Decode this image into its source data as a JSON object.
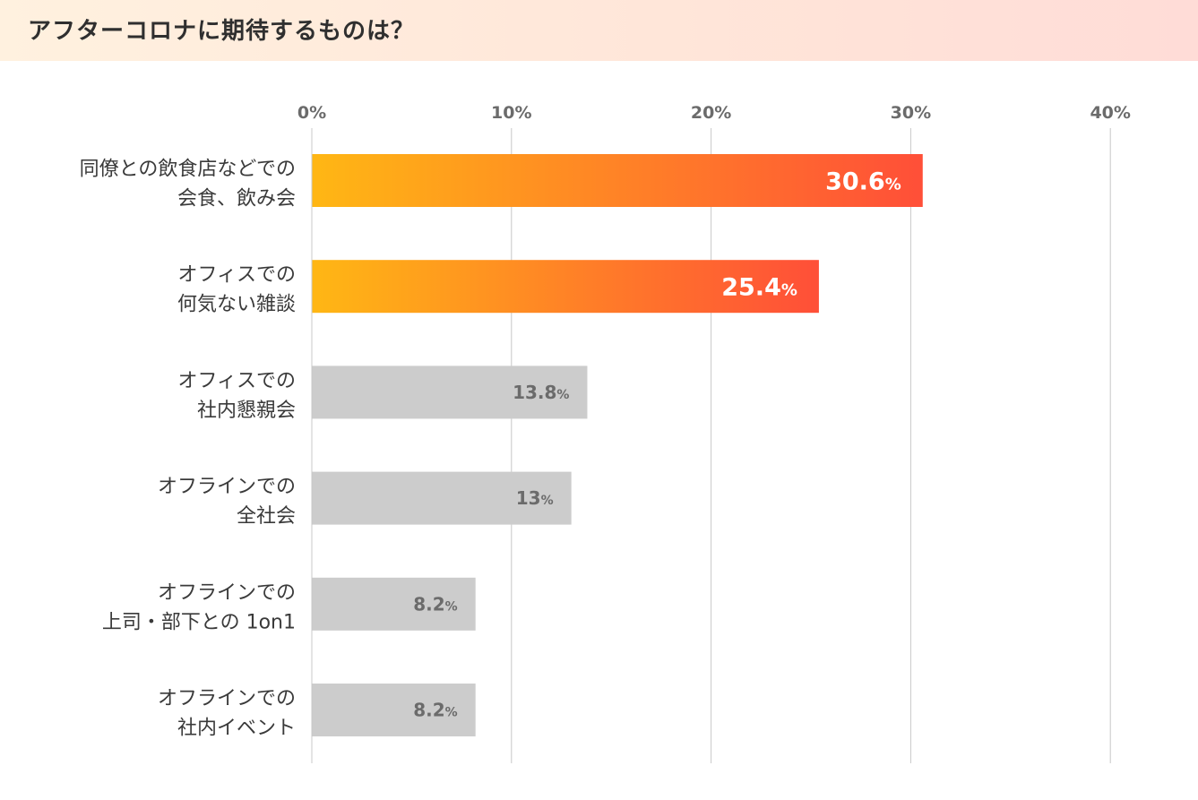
{
  "header": {
    "title": "アフターコロナに期待するものは？"
  },
  "chart_data": {
    "type": "bar",
    "orientation": "horizontal",
    "xlim": [
      0,
      40
    ],
    "ticks": [
      0,
      10,
      20,
      30,
      40
    ],
    "tick_labels": [
      "0%",
      "10%",
      "20%",
      "30%",
      "40%"
    ],
    "grid": true,
    "value_suffix": "%",
    "categories": [
      [
        "同僚との飲食店などでの",
        "会食、飲み会"
      ],
      [
        "オフィスでの",
        "何気ない雑談"
      ],
      [
        "オフィスでの",
        "社内懇親会"
      ],
      [
        "オフラインでの",
        "全社会"
      ],
      [
        "オフラインでの",
        "上司・部下との 1on1"
      ],
      [
        "オフラインでの",
        "社内イベント"
      ]
    ],
    "values": [
      30.6,
      25.4,
      13.8,
      13,
      8.2,
      8.2
    ],
    "value_labels": [
      "30.6",
      "25.4",
      "13.8",
      "13",
      "8.2",
      "8.2"
    ],
    "highlighted": [
      true,
      true,
      false,
      false,
      false,
      false
    ],
    "colors": {
      "highlight_start": "#ffb714",
      "highlight_end": "#ff4f38",
      "normal": "#cccccc",
      "grid": "#c8c8c8",
      "tick_text": "#6b6b6b",
      "label_text": "#3a3a3a"
    }
  }
}
